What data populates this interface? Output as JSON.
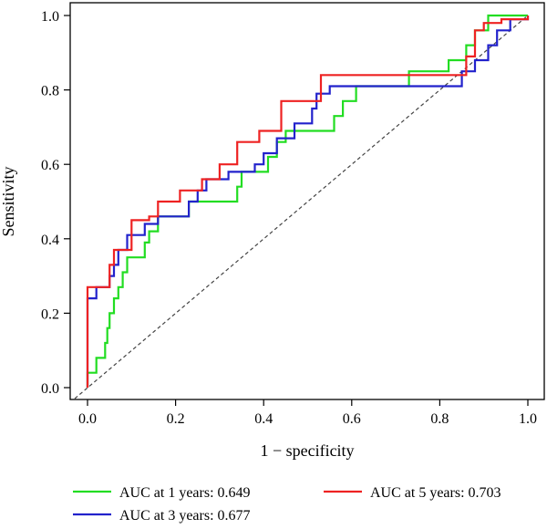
{
  "chart_data": {
    "type": "line",
    "xlabel": "1 − specificity",
    "ylabel": "Sensitivity",
    "xlim": [
      0.0,
      1.0
    ],
    "ylim": [
      0.0,
      1.0
    ],
    "x_ticks": [
      "0.0",
      "0.2",
      "0.4",
      "0.6",
      "0.8",
      "1.0"
    ],
    "y_ticks": [
      "0.0",
      "0.2",
      "0.4",
      "0.6",
      "0.8",
      "1.0"
    ],
    "grid": false,
    "legend_position": "bottom",
    "reference_line": {
      "style": "dashed",
      "points": [
        [
          0.0,
          0.0
        ],
        [
          1.0,
          1.0
        ]
      ]
    },
    "series": [
      {
        "name": "AUC at 1 years: 0.649",
        "color": "#22dd22",
        "points": [
          [
            0.0,
            0.0
          ],
          [
            0.0,
            0.04
          ],
          [
            0.02,
            0.04
          ],
          [
            0.02,
            0.08
          ],
          [
            0.04,
            0.08
          ],
          [
            0.04,
            0.12
          ],
          [
            0.045,
            0.12
          ],
          [
            0.045,
            0.16
          ],
          [
            0.05,
            0.16
          ],
          [
            0.05,
            0.2
          ],
          [
            0.06,
            0.2
          ],
          [
            0.06,
            0.24
          ],
          [
            0.07,
            0.24
          ],
          [
            0.07,
            0.27
          ],
          [
            0.08,
            0.27
          ],
          [
            0.08,
            0.31
          ],
          [
            0.09,
            0.31
          ],
          [
            0.09,
            0.35
          ],
          [
            0.13,
            0.35
          ],
          [
            0.13,
            0.39
          ],
          [
            0.14,
            0.39
          ],
          [
            0.14,
            0.42
          ],
          [
            0.16,
            0.42
          ],
          [
            0.16,
            0.46
          ],
          [
            0.23,
            0.46
          ],
          [
            0.23,
            0.5
          ],
          [
            0.34,
            0.5
          ],
          [
            0.34,
            0.54
          ],
          [
            0.35,
            0.54
          ],
          [
            0.35,
            0.58
          ],
          [
            0.41,
            0.58
          ],
          [
            0.41,
            0.62
          ],
          [
            0.43,
            0.62
          ],
          [
            0.43,
            0.66
          ],
          [
            0.45,
            0.66
          ],
          [
            0.45,
            0.69
          ],
          [
            0.56,
            0.69
          ],
          [
            0.56,
            0.73
          ],
          [
            0.58,
            0.73
          ],
          [
            0.58,
            0.77
          ],
          [
            0.61,
            0.77
          ],
          [
            0.61,
            0.81
          ],
          [
            0.73,
            0.81
          ],
          [
            0.73,
            0.85
          ],
          [
            0.82,
            0.85
          ],
          [
            0.82,
            0.85
          ],
          [
            0.82,
            0.88
          ],
          [
            0.86,
            0.88
          ],
          [
            0.86,
            0.92
          ],
          [
            0.88,
            0.92
          ],
          [
            0.88,
            0.96
          ],
          [
            0.91,
            0.96
          ],
          [
            0.91,
            1.0
          ],
          [
            1.0,
            1.0
          ]
        ]
      },
      {
        "name": "AUC at 3 years: 0.677",
        "color": "#2222cc",
        "points": [
          [
            0.0,
            0.0
          ],
          [
            0.0,
            0.24
          ],
          [
            0.02,
            0.24
          ],
          [
            0.02,
            0.27
          ],
          [
            0.05,
            0.27
          ],
          [
            0.05,
            0.3
          ],
          [
            0.06,
            0.3
          ],
          [
            0.06,
            0.33
          ],
          [
            0.07,
            0.33
          ],
          [
            0.07,
            0.37
          ],
          [
            0.09,
            0.37
          ],
          [
            0.09,
            0.41
          ],
          [
            0.13,
            0.41
          ],
          [
            0.13,
            0.44
          ],
          [
            0.16,
            0.44
          ],
          [
            0.16,
            0.46
          ],
          [
            0.23,
            0.46
          ],
          [
            0.23,
            0.5
          ],
          [
            0.25,
            0.5
          ],
          [
            0.25,
            0.53
          ],
          [
            0.27,
            0.53
          ],
          [
            0.27,
            0.56
          ],
          [
            0.32,
            0.56
          ],
          [
            0.32,
            0.58
          ],
          [
            0.38,
            0.58
          ],
          [
            0.38,
            0.6
          ],
          [
            0.4,
            0.6
          ],
          [
            0.4,
            0.63
          ],
          [
            0.43,
            0.63
          ],
          [
            0.43,
            0.67
          ],
          [
            0.47,
            0.67
          ],
          [
            0.47,
            0.71
          ],
          [
            0.51,
            0.71
          ],
          [
            0.51,
            0.75
          ],
          [
            0.52,
            0.75
          ],
          [
            0.52,
            0.79
          ],
          [
            0.55,
            0.79
          ],
          [
            0.55,
            0.81
          ],
          [
            0.85,
            0.81
          ],
          [
            0.85,
            0.85
          ],
          [
            0.88,
            0.85
          ],
          [
            0.88,
            0.88
          ],
          [
            0.91,
            0.88
          ],
          [
            0.91,
            0.92
          ],
          [
            0.93,
            0.92
          ],
          [
            0.93,
            0.96
          ],
          [
            0.96,
            0.96
          ],
          [
            0.96,
            0.99
          ],
          [
            1.0,
            0.99
          ],
          [
            1.0,
            1.0
          ]
        ]
      },
      {
        "name": "AUC at 5 years: 0.703",
        "color": "#ee2222",
        "points": [
          [
            0.0,
            0.0
          ],
          [
            0.0,
            0.27
          ],
          [
            0.05,
            0.27
          ],
          [
            0.05,
            0.33
          ],
          [
            0.06,
            0.33
          ],
          [
            0.06,
            0.37
          ],
          [
            0.1,
            0.37
          ],
          [
            0.1,
            0.45
          ],
          [
            0.14,
            0.45
          ],
          [
            0.14,
            0.46
          ],
          [
            0.16,
            0.46
          ],
          [
            0.16,
            0.5
          ],
          [
            0.21,
            0.5
          ],
          [
            0.21,
            0.53
          ],
          [
            0.26,
            0.53
          ],
          [
            0.26,
            0.56
          ],
          [
            0.3,
            0.56
          ],
          [
            0.3,
            0.6
          ],
          [
            0.34,
            0.6
          ],
          [
            0.34,
            0.66
          ],
          [
            0.39,
            0.66
          ],
          [
            0.39,
            0.69
          ],
          [
            0.44,
            0.69
          ],
          [
            0.44,
            0.77
          ],
          [
            0.53,
            0.77
          ],
          [
            0.53,
            0.84
          ],
          [
            0.83,
            0.84
          ],
          [
            0.83,
            0.84
          ],
          [
            0.86,
            0.84
          ],
          [
            0.86,
            0.89
          ],
          [
            0.88,
            0.89
          ],
          [
            0.88,
            0.96
          ],
          [
            0.9,
            0.96
          ],
          [
            0.9,
            0.98
          ],
          [
            0.94,
            0.98
          ],
          [
            0.94,
            0.99
          ],
          [
            1.0,
            0.99
          ],
          [
            1.0,
            1.0
          ]
        ]
      }
    ]
  }
}
